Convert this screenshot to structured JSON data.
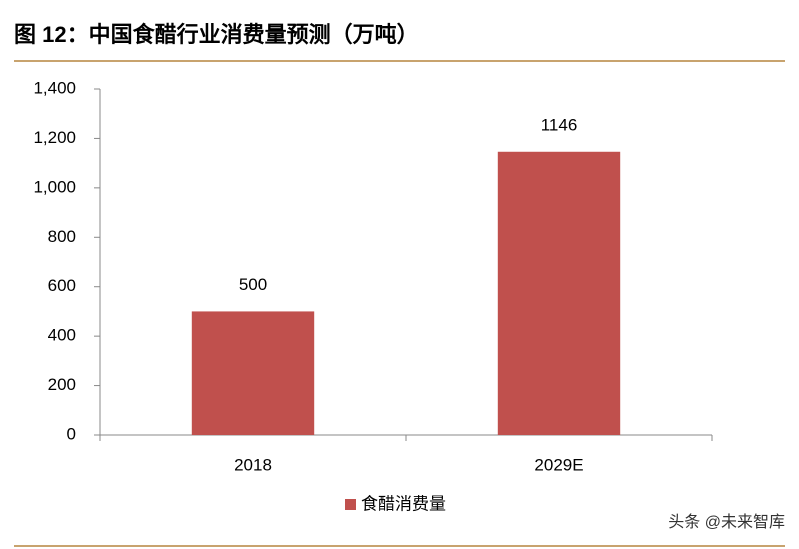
{
  "chart_data": {
    "type": "bar",
    "title": "图 12：中国食醋行业消费量预测（万吨）",
    "categories": [
      "2018",
      "2029E"
    ],
    "series": [
      {
        "name": "食醋消费量",
        "color": "#c0504d",
        "values": [
          500,
          1146
        ]
      }
    ],
    "ylim": [
      0,
      1400
    ],
    "yticks": [
      0,
      200,
      400,
      600,
      800,
      {
        "value": 1000,
        "label": "1,000"
      },
      {
        "value": 1200,
        "label": "1,200"
      },
      {
        "value": 1400,
        "label": "1,400"
      }
    ],
    "legend": "bottom",
    "watermark": "头条 @未来智库"
  }
}
